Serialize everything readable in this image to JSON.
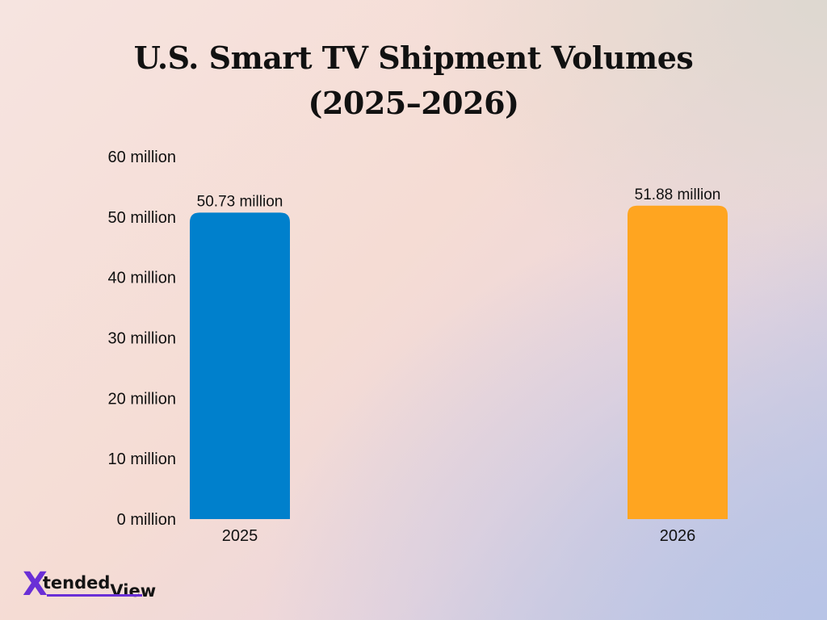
{
  "chart_data": {
    "type": "bar",
    "title": "U.S. Smart TV Shipment Volumes (2025–2026)",
    "title_lines": [
      "U.S. Smart TV Shipment Volumes",
      "(2025–2026)"
    ],
    "categories": [
      "2025",
      "2026"
    ],
    "values": [
      50.73,
      51.88
    ],
    "data_labels": [
      "50.73 million",
      "51.88 million"
    ],
    "bar_colors": [
      "#0080cc",
      "#ffa520"
    ],
    "y_ticks": [
      0,
      10,
      20,
      30,
      40,
      50,
      60
    ],
    "y_tick_labels": [
      "0 million",
      "10 million",
      "20 million",
      "30 million",
      "40 million",
      "50 million",
      "60 million"
    ],
    "ylim": [
      0,
      60
    ],
    "xlabel": "",
    "ylabel": "",
    "grid": false,
    "legend": "none"
  },
  "logo": {
    "mark": "X",
    "word_1": "tended",
    "word_2": "View",
    "accent_color": "#6a2fd6"
  }
}
